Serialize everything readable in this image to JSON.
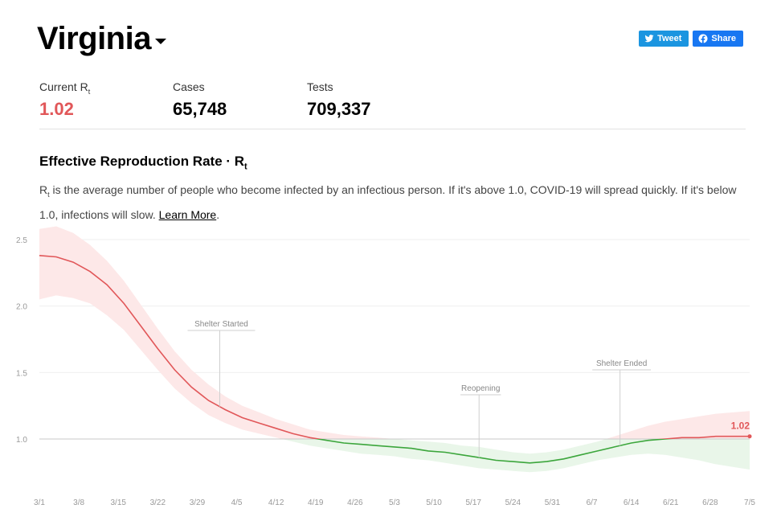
{
  "header": {
    "title": "Virginia"
  },
  "social": {
    "tweet_label": "Tweet",
    "share_label": "Share"
  },
  "stats": {
    "rt_label_main": "Current R",
    "rt_label_sub": "t",
    "rt_value": "1.02",
    "cases_label": "Cases",
    "cases_value": "65,748",
    "tests_label": "Tests",
    "tests_value": "709,337"
  },
  "section": {
    "title_main": "Effective Reproduction Rate · R",
    "title_sub": "t",
    "desc_r": "R",
    "desc_t": "t",
    "desc_text": " is the average number of people who become infected by an infectious person. If it's above 1.0, COVID-19 will spread quickly. If it's below 1.0, infections will slow. ",
    "learn_more": "Learn More",
    "period": "."
  },
  "colors": {
    "above": "#e15759",
    "below": "#3ca63c",
    "above_band": "#fde8e8",
    "below_band": "#e9f6e9"
  },
  "chart_data": {
    "type": "line",
    "title": "",
    "xlabel": "",
    "ylabel": "",
    "ylim": [
      0.6,
      2.5
    ],
    "grid": true,
    "yticks": [
      1.0,
      1.5,
      2.0,
      2.5
    ],
    "ytick_labels": [
      "1.0",
      "1.5",
      "2.0",
      "2.5"
    ],
    "threshold": 1.0,
    "current_label": "1.02",
    "xticks": [
      {
        "day": 0,
        "label": "3/1"
      },
      {
        "day": 7,
        "label": "3/8"
      },
      {
        "day": 14,
        "label": "3/15"
      },
      {
        "day": 21,
        "label": "3/22"
      },
      {
        "day": 28,
        "label": "3/29"
      },
      {
        "day": 35,
        "label": "4/5"
      },
      {
        "day": 42,
        "label": "4/12"
      },
      {
        "day": 49,
        "label": "4/19"
      },
      {
        "day": 56,
        "label": "4/26"
      },
      {
        "day": 63,
        "label": "5/3"
      },
      {
        "day": 70,
        "label": "5/10"
      },
      {
        "day": 77,
        "label": "5/17"
      },
      {
        "day": 84,
        "label": "5/24"
      },
      {
        "day": 91,
        "label": "5/31"
      },
      {
        "day": 98,
        "label": "6/7"
      },
      {
        "day": 105,
        "label": "6/14"
      },
      {
        "day": 112,
        "label": "6/21"
      },
      {
        "day": 119,
        "label": "6/28"
      },
      {
        "day": 126,
        "label": "7/5"
      }
    ],
    "annotations": [
      {
        "day": 32,
        "label": "Shelter Started"
      },
      {
        "day": 78,
        "label": "Reopening"
      },
      {
        "day": 103,
        "label": "Shelter Ended"
      }
    ],
    "series": [
      {
        "x": [
          0,
          3,
          6,
          9,
          12,
          15,
          18,
          21,
          24,
          27,
          30,
          33,
          36,
          39,
          42,
          45,
          48,
          51,
          54,
          57,
          60,
          63,
          66,
          69,
          72,
          75,
          78,
          81,
          84,
          87,
          90,
          93,
          96,
          99,
          102,
          105,
          108,
          111,
          114,
          117,
          120,
          123,
          126
        ],
        "y": [
          2.38,
          2.37,
          2.33,
          2.26,
          2.16,
          2.02,
          1.85,
          1.68,
          1.52,
          1.39,
          1.29,
          1.22,
          1.16,
          1.12,
          1.08,
          1.04,
          1.01,
          0.99,
          0.97,
          0.96,
          0.95,
          0.94,
          0.93,
          0.91,
          0.9,
          0.88,
          0.86,
          0.84,
          0.83,
          0.82,
          0.83,
          0.85,
          0.88,
          0.91,
          0.94,
          0.97,
          0.99,
          1.0,
          1.01,
          1.01,
          1.02,
          1.02,
          1.02
        ],
        "lower": [
          2.05,
          2.08,
          2.06,
          2.02,
          1.93,
          1.82,
          1.67,
          1.52,
          1.38,
          1.27,
          1.18,
          1.12,
          1.07,
          1.04,
          1.01,
          0.98,
          0.95,
          0.93,
          0.91,
          0.89,
          0.88,
          0.87,
          0.85,
          0.84,
          0.82,
          0.8,
          0.78,
          0.77,
          0.76,
          0.75,
          0.76,
          0.78,
          0.81,
          0.84,
          0.86,
          0.88,
          0.89,
          0.88,
          0.86,
          0.84,
          0.81,
          0.79,
          0.77
        ],
        "upper": [
          2.58,
          2.6,
          2.55,
          2.46,
          2.34,
          2.19,
          2.01,
          1.83,
          1.66,
          1.52,
          1.41,
          1.32,
          1.25,
          1.2,
          1.15,
          1.11,
          1.07,
          1.05,
          1.03,
          1.02,
          1.01,
          1.0,
          0.99,
          0.98,
          0.97,
          0.95,
          0.94,
          0.92,
          0.9,
          0.89,
          0.9,
          0.92,
          0.95,
          0.98,
          1.02,
          1.06,
          1.1,
          1.13,
          1.15,
          1.17,
          1.19,
          1.2,
          1.21
        ]
      }
    ]
  }
}
